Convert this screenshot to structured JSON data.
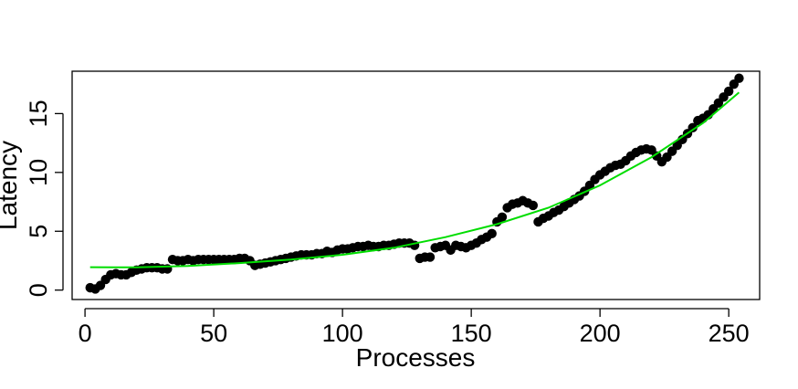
{
  "chart_data": {
    "type": "scatter",
    "title": "",
    "xlabel": "Processes",
    "ylabel": "Latency",
    "xlim": [
      -5,
      262
    ],
    "ylim": [
      -0.8,
      18.6
    ],
    "x_ticks": [
      "0",
      "50",
      "100",
      "150",
      "200",
      "250"
    ],
    "y_ticks": [
      "0",
      "5",
      "10",
      "15"
    ],
    "grid": false,
    "legend": "none",
    "point_color": "#000000",
    "fit_color": "#00dd00",
    "points": [
      [
        2,
        0.2
      ],
      [
        4,
        0.1
      ],
      [
        6,
        0.4
      ],
      [
        8,
        0.9
      ],
      [
        10,
        1.3
      ],
      [
        12,
        1.4
      ],
      [
        14,
        1.3
      ],
      [
        16,
        1.3
      ],
      [
        18,
        1.5
      ],
      [
        20,
        1.7
      ],
      [
        22,
        1.8
      ],
      [
        24,
        1.9
      ],
      [
        26,
        1.9
      ],
      [
        28,
        1.9
      ],
      [
        30,
        1.8
      ],
      [
        32,
        1.8
      ],
      [
        34,
        2.6
      ],
      [
        36,
        2.5
      ],
      [
        38,
        2.5
      ],
      [
        40,
        2.6
      ],
      [
        42,
        2.5
      ],
      [
        44,
        2.6
      ],
      [
        46,
        2.6
      ],
      [
        48,
        2.6
      ],
      [
        50,
        2.6
      ],
      [
        52,
        2.6
      ],
      [
        54,
        2.6
      ],
      [
        56,
        2.6
      ],
      [
        58,
        2.6
      ],
      [
        60,
        2.7
      ],
      [
        62,
        2.7
      ],
      [
        64,
        2.5
      ],
      [
        66,
        2.1
      ],
      [
        68,
        2.2
      ],
      [
        70,
        2.3
      ],
      [
        72,
        2.4
      ],
      [
        74,
        2.5
      ],
      [
        76,
        2.6
      ],
      [
        78,
        2.7
      ],
      [
        80,
        2.8
      ],
      [
        82,
        2.9
      ],
      [
        84,
        3.0
      ],
      [
        86,
        3.0
      ],
      [
        88,
        3.0
      ],
      [
        90,
        3.1
      ],
      [
        92,
        3.1
      ],
      [
        94,
        3.3
      ],
      [
        96,
        3.2
      ],
      [
        98,
        3.4
      ],
      [
        100,
        3.5
      ],
      [
        102,
        3.5
      ],
      [
        104,
        3.6
      ],
      [
        106,
        3.7
      ],
      [
        108,
        3.7
      ],
      [
        110,
        3.8
      ],
      [
        112,
        3.7
      ],
      [
        114,
        3.7
      ],
      [
        116,
        3.8
      ],
      [
        118,
        3.8
      ],
      [
        120,
        3.9
      ],
      [
        122,
        4.0
      ],
      [
        124,
        4.0
      ],
      [
        126,
        4.0
      ],
      [
        128,
        3.8
      ],
      [
        130,
        2.7
      ],
      [
        132,
        2.8
      ],
      [
        134,
        2.8
      ],
      [
        136,
        3.6
      ],
      [
        138,
        3.7
      ],
      [
        140,
        3.8
      ],
      [
        142,
        3.4
      ],
      [
        144,
        3.8
      ],
      [
        146,
        3.7
      ],
      [
        148,
        3.6
      ],
      [
        150,
        3.8
      ],
      [
        152,
        4.0
      ],
      [
        154,
        4.3
      ],
      [
        156,
        4.5
      ],
      [
        158,
        4.8
      ],
      [
        160,
        5.8
      ],
      [
        162,
        6.2
      ],
      [
        164,
        7.0
      ],
      [
        166,
        7.3
      ],
      [
        168,
        7.4
      ],
      [
        170,
        7.6
      ],
      [
        172,
        7.4
      ],
      [
        174,
        7.2
      ],
      [
        176,
        5.8
      ],
      [
        178,
        6.1
      ],
      [
        180,
        6.3
      ],
      [
        182,
        6.6
      ],
      [
        184,
        6.8
      ],
      [
        186,
        7.1
      ],
      [
        188,
        7.4
      ],
      [
        190,
        7.7
      ],
      [
        192,
        8.0
      ],
      [
        194,
        8.4
      ],
      [
        196,
        8.9
      ],
      [
        198,
        9.4
      ],
      [
        200,
        9.8
      ],
      [
        202,
        10.1
      ],
      [
        204,
        10.4
      ],
      [
        206,
        10.6
      ],
      [
        208,
        10.7
      ],
      [
        210,
        11.0
      ],
      [
        212,
        11.4
      ],
      [
        214,
        11.7
      ],
      [
        216,
        11.9
      ],
      [
        218,
        12.0
      ],
      [
        220,
        11.9
      ],
      [
        222,
        11.4
      ],
      [
        224,
        10.9
      ],
      [
        226,
        11.3
      ],
      [
        228,
        11.8
      ],
      [
        230,
        12.3
      ],
      [
        232,
        12.8
      ],
      [
        234,
        13.3
      ],
      [
        236,
        13.8
      ],
      [
        238,
        14.4
      ],
      [
        240,
        14.6
      ],
      [
        242,
        14.9
      ],
      [
        244,
        15.4
      ],
      [
        246,
        15.9
      ],
      [
        248,
        16.4
      ],
      [
        250,
        16.9
      ],
      [
        252,
        17.5
      ],
      [
        254,
        18.0
      ]
    ],
    "fit_line": [
      [
        2,
        1.95
      ],
      [
        20,
        1.93
      ],
      [
        40,
        2.05
      ],
      [
        60,
        2.3
      ],
      [
        80,
        2.6
      ],
      [
        100,
        3.0
      ],
      [
        120,
        3.6
      ],
      [
        140,
        4.5
      ],
      [
        160,
        5.6
      ],
      [
        180,
        7.0
      ],
      [
        200,
        8.9
      ],
      [
        220,
        11.3
      ],
      [
        240,
        14.2
      ],
      [
        254,
        16.8
      ]
    ]
  }
}
